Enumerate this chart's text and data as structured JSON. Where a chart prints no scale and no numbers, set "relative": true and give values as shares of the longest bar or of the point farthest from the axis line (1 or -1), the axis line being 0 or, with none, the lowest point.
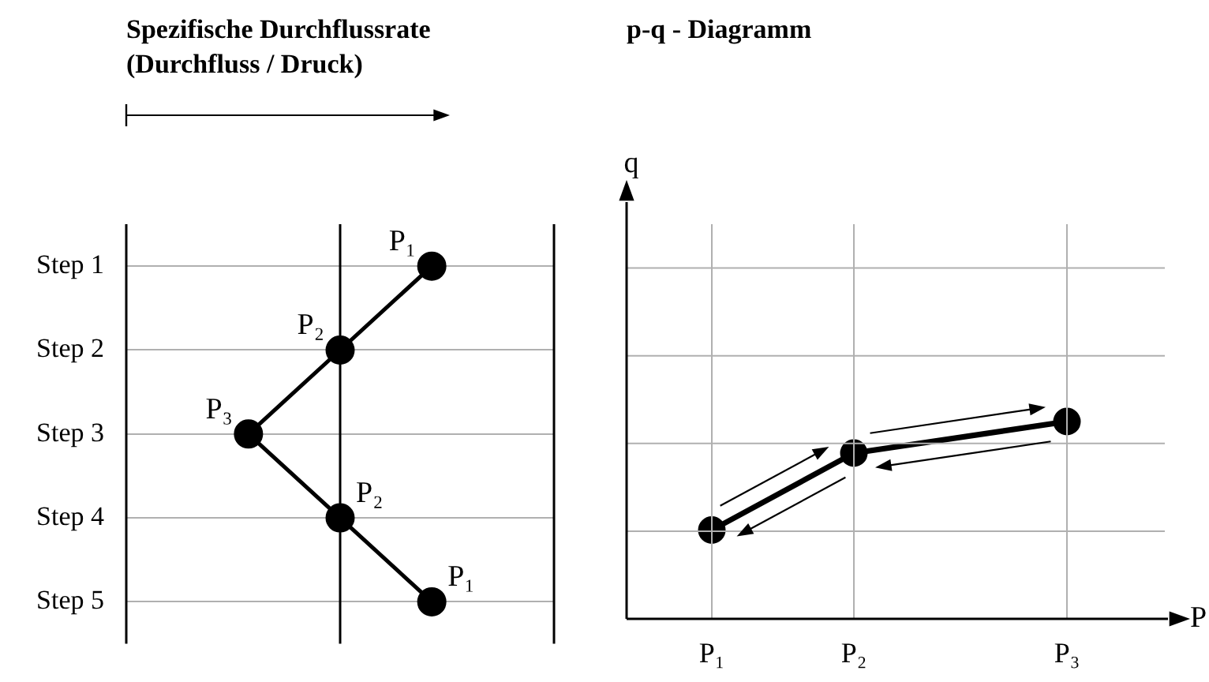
{
  "chart_data": [
    {
      "type": "line",
      "title": "Spezifische Durchflussrate\n(Durchfluss / Druck)",
      "orientation": "horizontal",
      "relative": true,
      "categories": [
        "Step 1",
        "Step 2",
        "Step 3",
        "Step 4",
        "Step 5"
      ],
      "values": [
        1,
        0.7,
        0.4,
        0.7,
        1
      ],
      "color": "#000000",
      "marker": "circle",
      "annotations": [
        {
          "text": "P₁",
          "x": 1,
          "y": "Step 1"
        },
        {
          "text": "P₂",
          "x": 0.7,
          "y": "Step 2"
        },
        {
          "text": "P₃",
          "x": 0.4,
          "y": "Step 3"
        },
        {
          "text": "P₂",
          "x": 0.7,
          "y": "Step 4"
        },
        {
          "text": "P₁",
          "x": 1,
          "y": "Step 5"
        }
      ],
      "grid": "y",
      "tick_labels": "y",
      "ref_lines": [
        {
          "axis": "x",
          "value": 0.7,
          "color": "#000000"
        }
      ]
    },
    {
      "type": "line",
      "title": "p-q - Diagramm",
      "xlabel": "P",
      "ylabel": "q",
      "relative": true,
      "categories": [
        "P₁",
        null,
        "P₂",
        null,
        null,
        "P₃"
      ],
      "values": [
        0.45,
        null,
        0.84,
        null,
        null,
        1
      ],
      "color": "#000000",
      "marker": "circle",
      "grid": true,
      "tick_labels": "x"
    }
  ]
}
